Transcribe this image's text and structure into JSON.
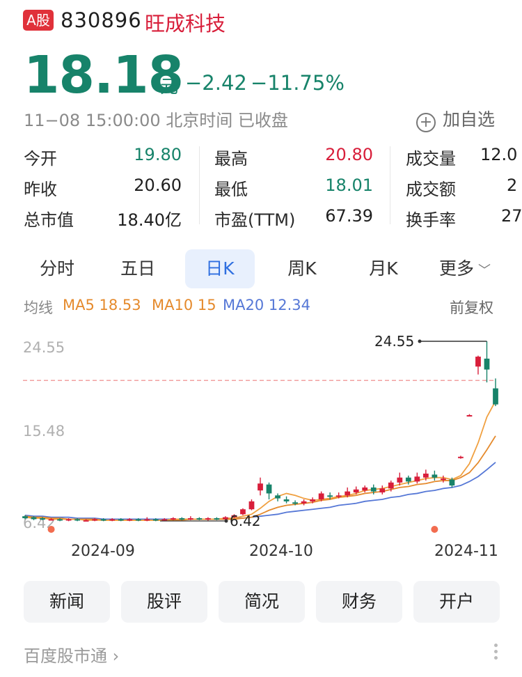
{
  "header": {
    "badge": "A股",
    "code": "830896",
    "name": "旺成科技",
    "price": "18.18",
    "unit": "元",
    "change": "−2.42",
    "change_pct": "−11.75%",
    "status": "11−08 15:00:00 北京时间 已收盘",
    "add_watchlist": "加自选"
  },
  "stats": [
    {
      "label": "今开",
      "value": "19.80",
      "color": "green"
    },
    {
      "label": "昨收",
      "value": "20.60",
      "color": "black"
    },
    {
      "label": "总市值",
      "value": "18.40亿",
      "color": "black"
    },
    {
      "label": "最高",
      "value": "20.80",
      "color": "red"
    },
    {
      "label": "最低",
      "value": "18.01",
      "color": "green"
    },
    {
      "label": "市盈(TTM)",
      "value": "67.39",
      "color": "black"
    },
    {
      "label": "成交量",
      "value": "12.0",
      "color": "black"
    },
    {
      "label": "成交额",
      "value": "2",
      "color": "black"
    },
    {
      "label": "换手率",
      "value": "27",
      "color": "black"
    }
  ],
  "tabs": [
    "分时",
    "五日",
    "日K",
    "周K",
    "月K",
    "更多"
  ],
  "active_tab": "日K",
  "legend": {
    "label": "均线",
    "ma5": "MA5 18.53",
    "ma10": "MA10 15",
    "ma20": "MA20 12.34",
    "adjust": "前复权"
  },
  "chart_data": {
    "type": "candlestick",
    "y_ticks": [
      "24.55",
      "15.48",
      "6.42"
    ],
    "x_ticks": [
      "2024-09",
      "2024-10",
      "2024-11"
    ],
    "high_annotation": "24.55",
    "low_annotation": "6.42",
    "reference_price": 20.6,
    "ylim": [
      6.42,
      24.55
    ],
    "candles": [
      {
        "o": 6.9,
        "c": 6.7,
        "h": 7.0,
        "l": 6.6
      },
      {
        "o": 6.8,
        "c": 6.6,
        "h": 6.9,
        "l": 6.5
      },
      {
        "o": 6.7,
        "c": 6.6,
        "h": 6.8,
        "l": 6.5
      },
      {
        "o": 6.6,
        "c": 6.6,
        "h": 6.7,
        "l": 6.5
      },
      {
        "o": 6.6,
        "c": 6.5,
        "h": 6.7,
        "l": 6.4
      },
      {
        "o": 6.5,
        "c": 6.6,
        "h": 6.7,
        "l": 6.4
      },
      {
        "o": 6.6,
        "c": 6.5,
        "h": 6.7,
        "l": 6.4
      },
      {
        "o": 6.5,
        "c": 6.5,
        "h": 6.6,
        "l": 6.4
      },
      {
        "o": 6.5,
        "c": 6.6,
        "h": 6.7,
        "l": 6.4
      },
      {
        "o": 6.6,
        "c": 6.5,
        "h": 6.7,
        "l": 6.4
      },
      {
        "o": 6.5,
        "c": 6.6,
        "h": 6.7,
        "l": 6.4
      },
      {
        "o": 6.6,
        "c": 6.5,
        "h": 6.7,
        "l": 6.4
      },
      {
        "o": 6.5,
        "c": 6.6,
        "h": 6.7,
        "l": 6.4
      },
      {
        "o": 6.6,
        "c": 6.5,
        "h": 6.7,
        "l": 6.4
      },
      {
        "o": 6.5,
        "c": 6.6,
        "h": 6.8,
        "l": 6.4
      },
      {
        "o": 6.6,
        "c": 6.5,
        "h": 6.7,
        "l": 6.4
      },
      {
        "o": 6.5,
        "c": 6.6,
        "h": 6.7,
        "l": 6.4
      },
      {
        "o": 6.6,
        "c": 6.7,
        "h": 6.8,
        "l": 6.5
      },
      {
        "o": 6.7,
        "c": 6.6,
        "h": 6.8,
        "l": 6.5
      },
      {
        "o": 6.6,
        "c": 6.7,
        "h": 6.9,
        "l": 6.5
      },
      {
        "o": 6.7,
        "c": 6.6,
        "h": 6.8,
        "l": 6.5
      },
      {
        "o": 6.6,
        "c": 6.7,
        "h": 6.8,
        "l": 6.42
      },
      {
        "o": 6.7,
        "c": 6.6,
        "h": 6.8,
        "l": 6.5
      },
      {
        "o": 6.6,
        "c": 6.8,
        "h": 6.9,
        "l": 6.5
      },
      {
        "o": 6.8,
        "c": 7.0,
        "h": 7.1,
        "l": 6.7
      },
      {
        "o": 7.1,
        "c": 7.6,
        "h": 7.7,
        "l": 7.0
      },
      {
        "o": 7.6,
        "c": 8.4,
        "h": 8.6,
        "l": 7.5
      },
      {
        "o": 9.5,
        "c": 10.2,
        "h": 10.8,
        "l": 9.0
      },
      {
        "o": 10.1,
        "c": 9.2,
        "h": 10.3,
        "l": 8.6
      },
      {
        "o": 9.0,
        "c": 8.7,
        "h": 9.2,
        "l": 8.4
      },
      {
        "o": 8.6,
        "c": 8.4,
        "h": 8.9,
        "l": 8.2
      },
      {
        "o": 8.3,
        "c": 8.2,
        "h": 8.5,
        "l": 8.0
      },
      {
        "o": 8.2,
        "c": 8.4,
        "h": 8.6,
        "l": 8.0
      },
      {
        "o": 8.4,
        "c": 8.6,
        "h": 8.8,
        "l": 8.2
      },
      {
        "o": 8.6,
        "c": 9.2,
        "h": 9.4,
        "l": 8.4
      },
      {
        "o": 9.0,
        "c": 8.9,
        "h": 9.3,
        "l": 8.6
      },
      {
        "o": 8.9,
        "c": 9.0,
        "h": 9.3,
        "l": 8.7
      },
      {
        "o": 9.0,
        "c": 9.4,
        "h": 9.8,
        "l": 8.8
      },
      {
        "o": 9.3,
        "c": 9.6,
        "h": 9.9,
        "l": 9.1
      },
      {
        "o": 9.5,
        "c": 9.8,
        "h": 10.0,
        "l": 9.3
      },
      {
        "o": 9.8,
        "c": 9.4,
        "h": 10.1,
        "l": 9.1
      },
      {
        "o": 9.3,
        "c": 9.7,
        "h": 10.0,
        "l": 9.1
      },
      {
        "o": 9.7,
        "c": 10.3,
        "h": 10.5,
        "l": 9.4
      },
      {
        "o": 10.3,
        "c": 10.8,
        "h": 11.3,
        "l": 10.0
      },
      {
        "o": 10.8,
        "c": 10.4,
        "h": 11.0,
        "l": 10.1
      },
      {
        "o": 10.4,
        "c": 10.9,
        "h": 11.3,
        "l": 10.2
      },
      {
        "o": 10.8,
        "c": 11.2,
        "h": 11.6,
        "l": 10.5
      },
      {
        "o": 11.1,
        "c": 10.8,
        "h": 11.5,
        "l": 10.5
      },
      {
        "o": 10.6,
        "c": 10.7,
        "h": 11.0,
        "l": 10.3
      },
      {
        "o": 10.6,
        "c": 10.0,
        "h": 10.8,
        "l": 9.8
      },
      {
        "o": 12.8,
        "c": 12.9,
        "h": 13.0,
        "l": 12.7
      },
      {
        "o": 17.0,
        "c": 17.1,
        "h": 17.2,
        "l": 17.0
      },
      {
        "o": 22.0,
        "c": 23.0,
        "h": 23.1,
        "l": 21.2
      },
      {
        "o": 22.8,
        "c": 21.7,
        "h": 24.55,
        "l": 20.4
      },
      {
        "o": 19.8,
        "c": 18.18,
        "h": 20.8,
        "l": 18.01
      }
    ],
    "ma5": [
      6.8,
      6.7,
      6.7,
      6.6,
      6.6,
      6.6,
      6.6,
      6.5,
      6.5,
      6.5,
      6.5,
      6.5,
      6.5,
      6.5,
      6.5,
      6.5,
      6.5,
      6.6,
      6.6,
      6.6,
      6.6,
      6.6,
      6.6,
      6.7,
      6.7,
      6.9,
      7.1,
      7.7,
      8.4,
      8.9,
      9.2,
      9.0,
      8.7,
      8.5,
      8.6,
      8.7,
      8.9,
      9.0,
      9.2,
      9.5,
      9.6,
      9.7,
      9.9,
      10.1,
      10.3,
      10.5,
      10.7,
      10.8,
      10.8,
      10.6,
      11.0,
      12.2,
      14.3,
      16.9,
      18.53
    ],
    "ma10": [
      6.9,
      6.8,
      6.8,
      6.7,
      6.7,
      6.6,
      6.6,
      6.6,
      6.6,
      6.5,
      6.5,
      6.5,
      6.5,
      6.5,
      6.5,
      6.5,
      6.5,
      6.5,
      6.5,
      6.6,
      6.6,
      6.6,
      6.6,
      6.6,
      6.6,
      6.7,
      6.8,
      7.1,
      7.5,
      7.8,
      8.0,
      8.1,
      8.2,
      8.3,
      8.5,
      8.6,
      8.8,
      8.9,
      9.0,
      9.2,
      9.3,
      9.4,
      9.6,
      9.8,
      9.9,
      10.1,
      10.2,
      10.4,
      10.5,
      10.5,
      10.8,
      11.3,
      12.3,
      13.6,
      15.0
    ],
    "ma20": [
      7.0,
      6.9,
      6.9,
      6.8,
      6.8,
      6.8,
      6.7,
      6.7,
      6.7,
      6.6,
      6.6,
      6.6,
      6.6,
      6.6,
      6.6,
      6.6,
      6.6,
      6.6,
      6.6,
      6.6,
      6.6,
      6.6,
      6.6,
      6.6,
      6.7,
      6.7,
      6.8,
      6.9,
      7.0,
      7.1,
      7.3,
      7.4,
      7.5,
      7.6,
      7.7,
      7.8,
      8.0,
      8.1,
      8.2,
      8.4,
      8.5,
      8.6,
      8.8,
      8.9,
      9.1,
      9.2,
      9.4,
      9.5,
      9.7,
      9.8,
      10.0,
      10.4,
      10.9,
      11.6,
      12.34
    ],
    "event_markers": [
      3,
      47
    ]
  },
  "bottom_buttons": [
    "新闻",
    "股评",
    "简况",
    "财务",
    "开户"
  ],
  "source": "百度股市通 ›",
  "colors": {
    "up": "#d81e3a",
    "down": "#17836a",
    "ma5": "#e58a2c",
    "ma10": "#e58a2c",
    "ma20": "#5577d6",
    "accent": "#2f6fe0"
  }
}
